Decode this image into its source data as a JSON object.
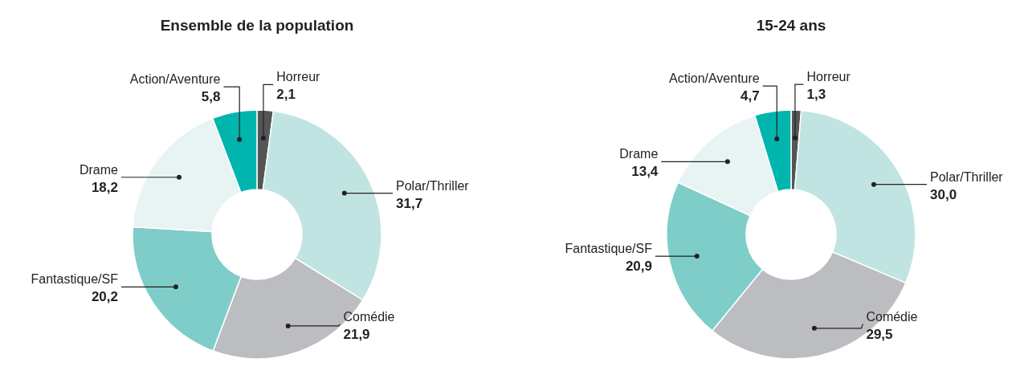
{
  "chart_data": [
    {
      "type": "donut",
      "title": "Ensemble de la population",
      "categories": [
        "Horreur",
        "Polar/Thriller",
        "Comédie",
        "Fantastique/SF",
        "Drame",
        "Action/Aventure"
      ],
      "values": [
        2.1,
        31.7,
        21.9,
        20.2,
        18.2,
        5.8
      ],
      "value_labels": [
        "2,1",
        "31,7",
        "21,9",
        "20,2",
        "18,2",
        "5,8"
      ],
      "colors": [
        "#555555",
        "#c0e4e2",
        "#bcbdc1",
        "#7ecdc8",
        "#e8f4f4",
        "#00b5ad"
      ]
    },
    {
      "type": "donut",
      "title": "15-24 ans",
      "categories": [
        "Horreur",
        "Polar/Thriller",
        "Comédie",
        "Fantastique/SF",
        "Drame",
        "Action/Aventure"
      ],
      "values": [
        1.3,
        30.0,
        29.5,
        20.9,
        13.4,
        4.7
      ],
      "value_labels": [
        "1,3",
        "30,0",
        "29,5",
        "20,9",
        "13,4",
        "4,7"
      ],
      "colors": [
        "#555555",
        "#c0e4e2",
        "#bcbdc1",
        "#7ecdc8",
        "#e8f4f4",
        "#00b5ad"
      ]
    }
  ]
}
